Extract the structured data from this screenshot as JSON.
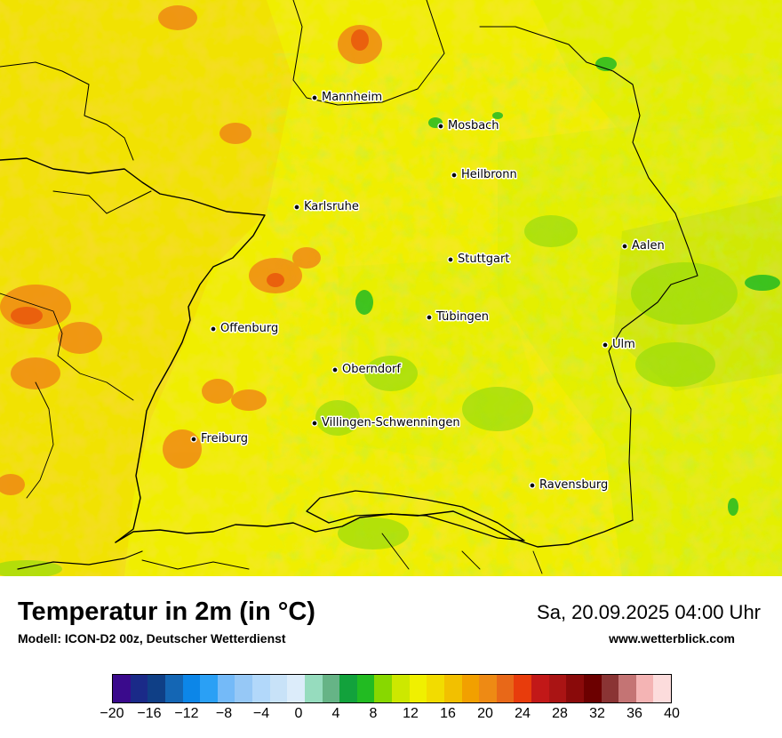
{
  "map": {
    "background_colors": {
      "yellow": "#f0ee00",
      "yellow_green": "#cdee00",
      "light_green": "#9edc0c",
      "green": "#22bb22",
      "orange": "#f2c80a",
      "dark_orange": "#ef8a14",
      "red_orange": "#e8520c"
    },
    "cities": [
      {
        "name": "Mannheim"
      },
      {
        "name": "Mosbach"
      },
      {
        "name": "Heilbronn"
      },
      {
        "name": "Karlsruhe"
      },
      {
        "name": "Aalen"
      },
      {
        "name": "Stuttgart"
      },
      {
        "name": "Tübingen"
      },
      {
        "name": "Offenburg"
      },
      {
        "name": "Ulm"
      },
      {
        "name": "Oberndorf"
      },
      {
        "name": "Villingen-Schwenningen"
      },
      {
        "name": "Freiburg"
      },
      {
        "name": "Ravensburg"
      }
    ]
  },
  "footer": {
    "title": "Temperatur in 2m (in °C)",
    "subtitle": "Modell: ICON-D2 00z, Deutscher Wetterdienst",
    "datetime": "Sa, 20.09.2025 04:00 Uhr",
    "source": "www.wetterblick.com"
  },
  "colorbar": {
    "colors": [
      "#3a0a8c",
      "#1a2a88",
      "#0f3f86",
      "#1466b4",
      "#0c86e8",
      "#2aa0f5",
      "#74baf8",
      "#96c8f6",
      "#b2d8fa",
      "#c8e2f8",
      "#dcecfa",
      "#96dcbe",
      "#66b486",
      "#12a23c",
      "#22bb22",
      "#88d800",
      "#cde800",
      "#f0f000",
      "#f2dc00",
      "#f2c000",
      "#f2a000",
      "#ee8a14",
      "#e86818",
      "#e83c0c",
      "#c21818",
      "#aa1414",
      "#8a0a0a",
      "#6c0000",
      "#8a3434",
      "#c47474",
      "#f4b4b4",
      "#fcdcdc"
    ],
    "ticks": [
      "−20",
      "−16",
      "−12",
      "−8",
      "−4",
      "0",
      "4",
      "8",
      "12",
      "16",
      "20",
      "24",
      "28",
      "32",
      "36",
      "40"
    ]
  }
}
